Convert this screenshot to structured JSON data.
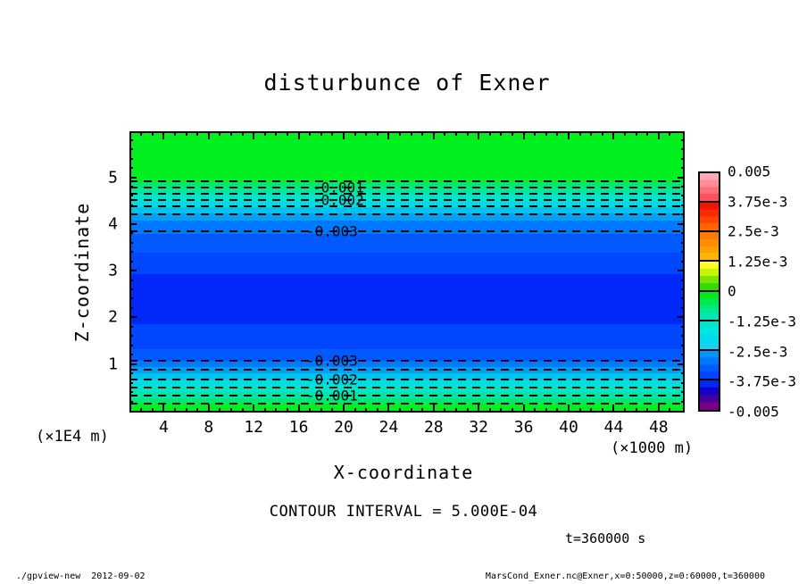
{
  "chart_data": {
    "type": "heatmap",
    "title": "disturbunce of Exner",
    "xlabel": "X-coordinate",
    "x_units": "(×1000 m)",
    "ylabel": "Z-coordinate",
    "y_units": "(×1E4 m)",
    "xlim": [
      0,
      50
    ],
    "ylim": [
      0,
      6
    ],
    "xticks_major": [
      4,
      8,
      12,
      16,
      20,
      24,
      28,
      32,
      36,
      40,
      44,
      48
    ],
    "yticks_major": [
      1,
      2,
      3,
      4,
      5
    ],
    "contour_interval_label": "CONTOUR INTERVAL = 5.000E-04",
    "time_label": "t=360000 s",
    "footer_left": "./gpview-new  2012-09-02",
    "footer_right": "MarsCond_Exner.nc@Exner,x=0:50000,z=0:60000,t=360000",
    "z_profile": [
      [
        6.0,
        0.0
      ],
      [
        5.0,
        -0.0002
      ],
      [
        4.91,
        -0.0005
      ],
      [
        4.78,
        -0.001
      ],
      [
        4.65,
        -0.0015
      ],
      [
        4.51,
        -0.002
      ],
      [
        4.38,
        -0.0025
      ],
      [
        3.82,
        -0.003
      ],
      [
        2.4,
        -0.0033
      ],
      [
        1.07,
        -0.003
      ],
      [
        0.88,
        -0.0025
      ],
      [
        0.67,
        -0.002
      ],
      [
        0.5,
        -0.0015
      ],
      [
        0.33,
        -0.001
      ],
      [
        0.15,
        -0.0005
      ],
      [
        0.0,
        0.0
      ]
    ],
    "field_bands": [
      {
        "h": 57,
        "c": "#00EF1E"
      },
      {
        "h": 7,
        "c": "#00E96E"
      },
      {
        "h": 7,
        "c": "#00E6A5"
      },
      {
        "h": 7,
        "c": "#00E6C8"
      },
      {
        "h": 7,
        "c": "#00DCE1"
      },
      {
        "h": 7,
        "c": "#00C3EB"
      },
      {
        "h": 8,
        "c": "#00A0F5"
      },
      {
        "h": 15,
        "c": "#0078FF"
      },
      {
        "h": 21,
        "c": "#005AFF"
      },
      {
        "h": 24,
        "c": "#0046FF"
      },
      {
        "h": 56,
        "c": "#0028F8"
      },
      {
        "h": 28,
        "c": "#0046FF"
      },
      {
        "h": 13,
        "c": "#005AFF"
      },
      {
        "h": 7,
        "c": "#0078FF"
      },
      {
        "h": 7,
        "c": "#00A0F5"
      },
      {
        "h": 7,
        "c": "#00C3EB"
      },
      {
        "h": 7,
        "c": "#00DCE1"
      },
      {
        "h": 7,
        "c": "#00E6C8"
      },
      {
        "h": 7,
        "c": "#00E6A5"
      },
      {
        "h": 6,
        "c": "#00E96E"
      },
      {
        "h": 10,
        "c": "#00EF1E"
      }
    ],
    "contour_lines_y": [
      56,
      63,
      70,
      77,
      84,
      93,
      112,
      257,
      267,
      278,
      287,
      296,
      305
    ],
    "contour_labels": [
      {
        "text": "-0.001",
        "x": 205,
        "y": 63
      },
      {
        "text": "-0.002",
        "x": 205,
        "y": 77
      },
      {
        "text": "-0.003",
        "x": 198,
        "y": 112
      },
      {
        "text": "-0.003",
        "x": 198,
        "y": 257
      },
      {
        "text": "-0.002",
        "x": 198,
        "y": 278
      },
      {
        "text": "-0.001",
        "x": 198,
        "y": 296
      }
    ],
    "colorbar": {
      "labels": [
        "0.005",
        "3.75e-3",
        "2.5e-3",
        "1.25e-3",
        "0",
        "-1.25e-3",
        "-2.5e-3",
        "-3.75e-3",
        "-0.005"
      ],
      "segments": [
        [
          "#FFAAB4",
          "#FF8C96",
          "#FF6E78",
          "#FF505A"
        ],
        [
          "#F51400",
          "#FF2800",
          "#FF4600",
          "#FF6400"
        ],
        [
          "#FF7800",
          "#FF8C00",
          "#FFA000",
          "#FFB400"
        ],
        [
          "#FFFF28",
          "#C8F500",
          "#78E600",
          "#32DC00"
        ],
        [
          "#00EB1E",
          "#00E950",
          "#00E78C",
          "#00E6B4"
        ],
        [
          "#00E6C8",
          "#00E6E1",
          "#00DCEB",
          "#14D2F0"
        ],
        [
          "#0096FF",
          "#0078FF",
          "#005AFF",
          "#0046FF"
        ],
        [
          "#0028F0",
          "#1400C8",
          "#46009B",
          "#780087"
        ]
      ]
    }
  }
}
